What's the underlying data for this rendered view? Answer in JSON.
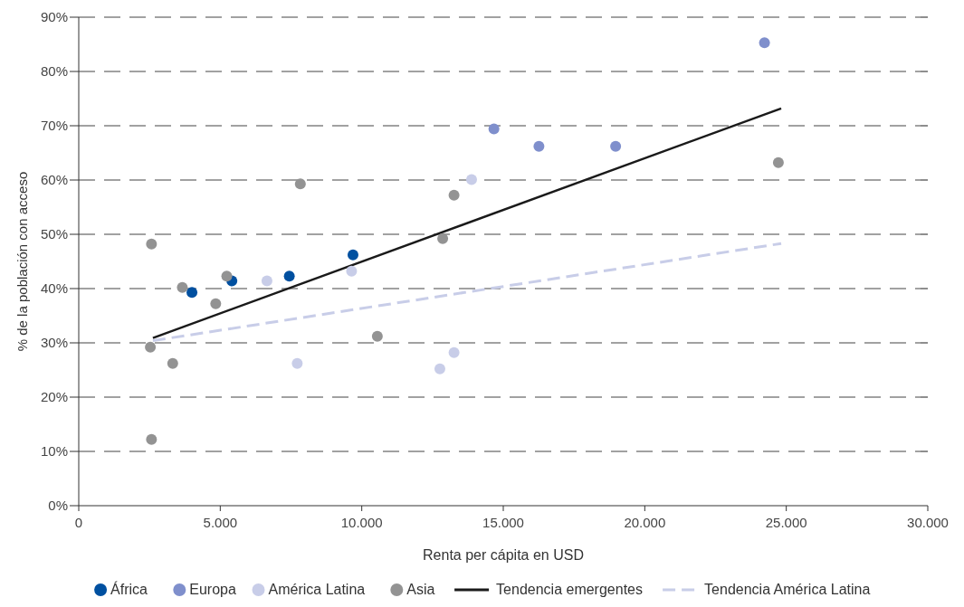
{
  "chart_data": {
    "type": "scatter",
    "xlabel": "Renta per cápita en USD",
    "ylabel": "% de la población con acceso",
    "xlim": [
      0,
      30000
    ],
    "xticks": [
      {
        "value": 0,
        "label": "0"
      },
      {
        "value": 5000,
        "label": "5.000"
      },
      {
        "value": 10000,
        "label": "10.000"
      },
      {
        "value": 15000,
        "label": "15.000"
      },
      {
        "value": 20000,
        "label": "20.000"
      },
      {
        "value": 25000,
        "label": "25.000"
      },
      {
        "value": 30000,
        "label": "30.000"
      }
    ],
    "ylim": [
      0,
      90
    ],
    "yticks": [
      {
        "value": 0,
        "label": "0%"
      },
      {
        "value": 10,
        "label": "10%"
      },
      {
        "value": 20,
        "label": "20%"
      },
      {
        "value": 30,
        "label": "30%"
      },
      {
        "value": 40,
        "label": "40%"
      },
      {
        "value": 50,
        "label": "50%"
      },
      {
        "value": 60,
        "label": "60%"
      },
      {
        "value": 70,
        "label": "70%"
      },
      {
        "value": 80,
        "label": "80%"
      },
      {
        "value": 90,
        "label": "90%"
      }
    ],
    "grid": "y",
    "legend": "bottom",
    "marker": "circle",
    "series": [
      {
        "name": "África",
        "color": "#0050a0",
        "x": [
          4000,
          5410,
          7440,
          9690
        ],
        "values": [
          39.3,
          41.4,
          42.3,
          46.2
        ]
      },
      {
        "name": "Europa",
        "color": "#7f8fcc",
        "x": [
          14670,
          16260,
          18970,
          24230
        ],
        "values": [
          69.4,
          66.2,
          66.2,
          85.3
        ]
      },
      {
        "name": "América Latina",
        "color": "#c8cde8",
        "x": [
          6650,
          7720,
          9640,
          13880,
          13260,
          12760
        ],
        "values": [
          41.4,
          26.2,
          43.2,
          60.1,
          28.2,
          25.2
        ]
      },
      {
        "name": "Asia",
        "color": "#939393",
        "x": [
          2570,
          3660,
          4840,
          5230,
          7830,
          10550,
          2530,
          3320,
          13260,
          12860,
          24720,
          2570
        ],
        "values": [
          48.2,
          40.2,
          37.2,
          42.3,
          59.3,
          31.2,
          29.2,
          26.2,
          57.2,
          49.2,
          63.2,
          12.2
        ]
      },
      {
        "name": "Tendencia emergentes",
        "type": "line",
        "color": "#1a1a1a",
        "line_style": "solid",
        "marker": "none",
        "x": [
          2620,
          24820
        ],
        "values": [
          30.9,
          73.2
        ]
      },
      {
        "name": "Tendencia América Latina",
        "type": "line",
        "color": "#c8cde8",
        "line_style": "dashed",
        "marker": "none",
        "x": [
          2620,
          24820
        ],
        "values": [
          30.4,
          48.3
        ]
      }
    ]
  }
}
